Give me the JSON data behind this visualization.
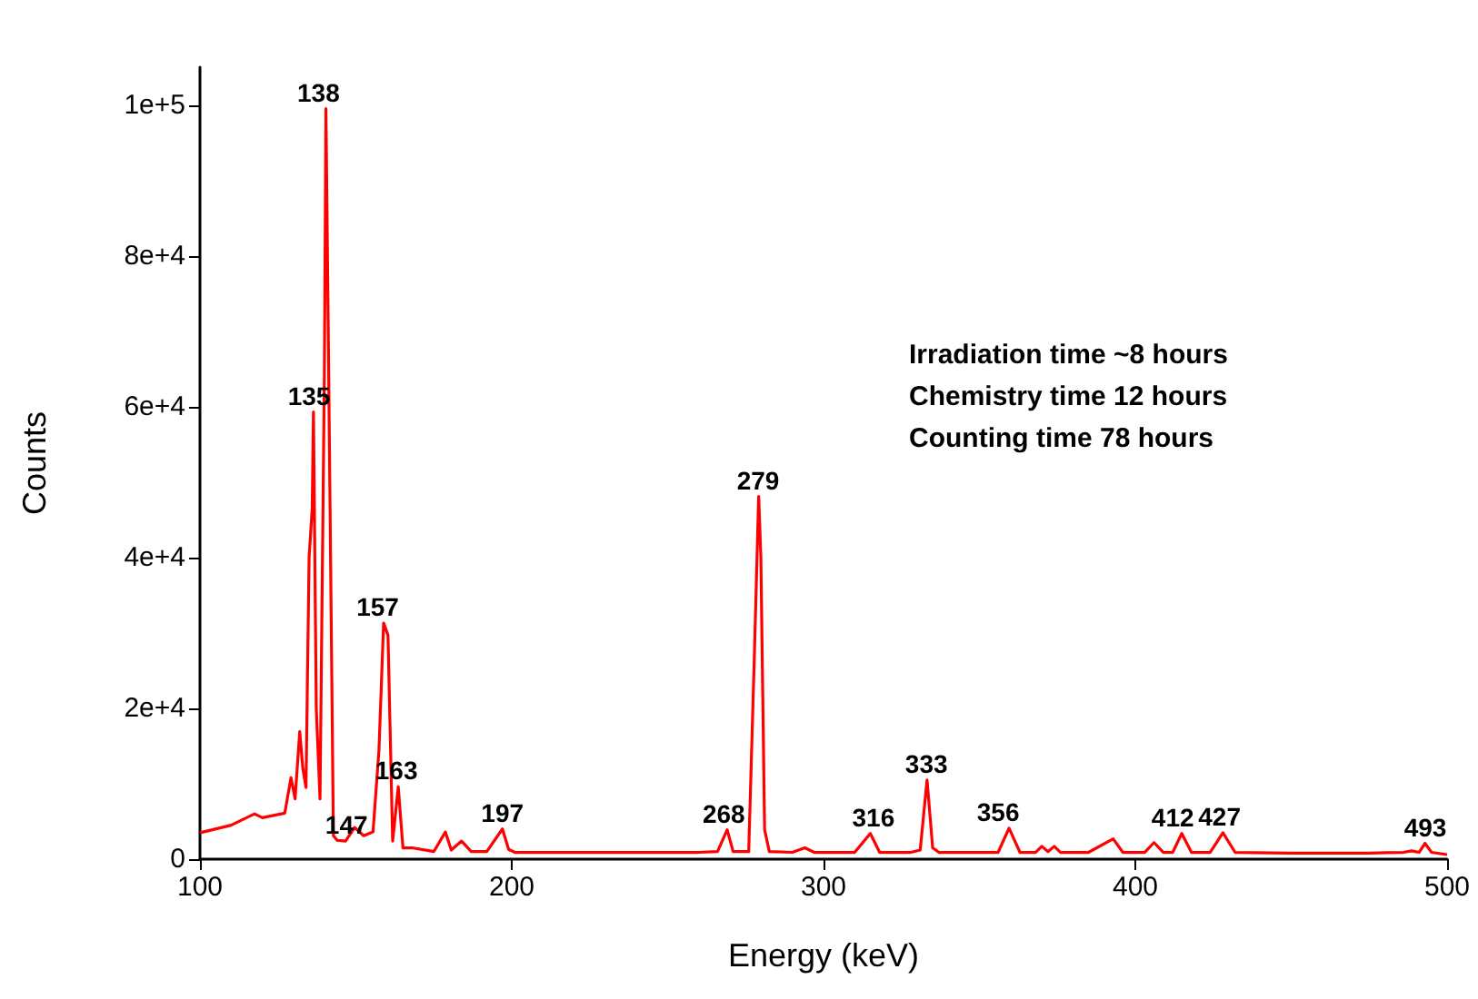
{
  "chart_data": {
    "type": "line",
    "xlabel": "Energy (keV)",
    "ylabel": "Counts",
    "xlim": [
      100,
      500
    ],
    "xticks": [
      100,
      200,
      300,
      400,
      500
    ],
    "ylim": [
      0,
      105000
    ],
    "yticks": [
      0,
      {
        "value": 20000,
        "label": "2e+4"
      },
      {
        "value": 40000,
        "label": "4e+4"
      },
      {
        "value": 60000,
        "label": "6e+4"
      },
      {
        "value": 80000,
        "label": "8e+4"
      },
      {
        "value": 100000,
        "label": "1e+5"
      }
    ],
    "grid": false,
    "marker": "none",
    "line_style": "solid",
    "series": [
      {
        "color": "#ff0000",
        "x": [
          100,
          101,
          110,
          117.5,
          120,
          127.2,
          129.2,
          130.5,
          132,
          133,
          134,
          135,
          136,
          136.4,
          137.3,
          138.5,
          139.9,
          140.4,
          141.2,
          142.8,
          144,
          146.7,
          149.6,
          152.5,
          155.5,
          157.4,
          158.9,
          160.3,
          161.8,
          163.6,
          165.1,
          168,
          175,
          178.7,
          180.6,
          183.9,
          187,
          192,
          197,
          199,
          201,
          220,
          240,
          260,
          266,
          269.1,
          271,
          276,
          277.8,
          279.2,
          279.9,
          281.1,
          282.6,
          290,
          294,
          297,
          310,
          315,
          318,
          328,
          331,
          333.2,
          335,
          337,
          350,
          356,
          359.5,
          363,
          368,
          370,
          372,
          374,
          376,
          385,
          392.9,
          396,
          403,
          406,
          409,
          412,
          414.9,
          418,
          424,
          428.1,
          432,
          450,
          475,
          486,
          488.6,
          491,
          492.9,
          495,
          500
        ],
        "values": [
          3500,
          3600,
          4500,
          6000,
          5500,
          6100,
          10800,
          8000,
          16900,
          12000,
          9500,
          40000,
          46500,
          59300,
          20000,
          8000,
          64200,
          99500,
          67800,
          3100,
          2500,
          2400,
          4200,
          3100,
          3600,
          14400,
          31300,
          29700,
          2400,
          9600,
          1500,
          1500,
          1000,
          3600,
          1200,
          2400,
          1000,
          1000,
          4000,
          1300,
          900,
          900,
          900,
          900,
          1000,
          3900,
          1000,
          1000,
          26800,
          48100,
          40000,
          3900,
          1000,
          900,
          1500,
          900,
          900,
          3400,
          900,
          900,
          1200,
          10500,
          1500,
          900,
          900,
          900,
          4100,
          900,
          900,
          1700,
          1000,
          1700,
          900,
          900,
          2700,
          900,
          900,
          2200,
          900,
          900,
          3400,
          900,
          900,
          3500,
          900,
          800,
          800,
          900,
          1100,
          900,
          2100,
          900,
          600
        ]
      }
    ],
    "annotations": [
      {
        "text": "138",
        "x": 138,
        "y": 99500
      },
      {
        "text": "135",
        "x": 135,
        "y": 59300
      },
      {
        "text": "157",
        "x": 157,
        "y": 31300
      },
      {
        "text": "163",
        "x": 163,
        "y": 9600
      },
      {
        "text": "147",
        "x": 147,
        "y": 2400
      },
      {
        "text": "197",
        "x": 197,
        "y": 4000
      },
      {
        "text": "268",
        "x": 268,
        "y": 3900
      },
      {
        "text": "279",
        "x": 279,
        "y": 48100
      },
      {
        "text": "316",
        "x": 316,
        "y": 3400
      },
      {
        "text": "333",
        "x": 333,
        "y": 10500
      },
      {
        "text": "356",
        "x": 356,
        "y": 4100
      },
      {
        "text": "412",
        "x": 412,
        "y": 3400
      },
      {
        "text": "427",
        "x": 427,
        "y": 3500
      },
      {
        "text": "493",
        "x": 493,
        "y": 2100
      },
      "Irradiation time ~8 hours",
      "Chemistry time 12 hours",
      "Counting time 78 hours"
    ]
  }
}
